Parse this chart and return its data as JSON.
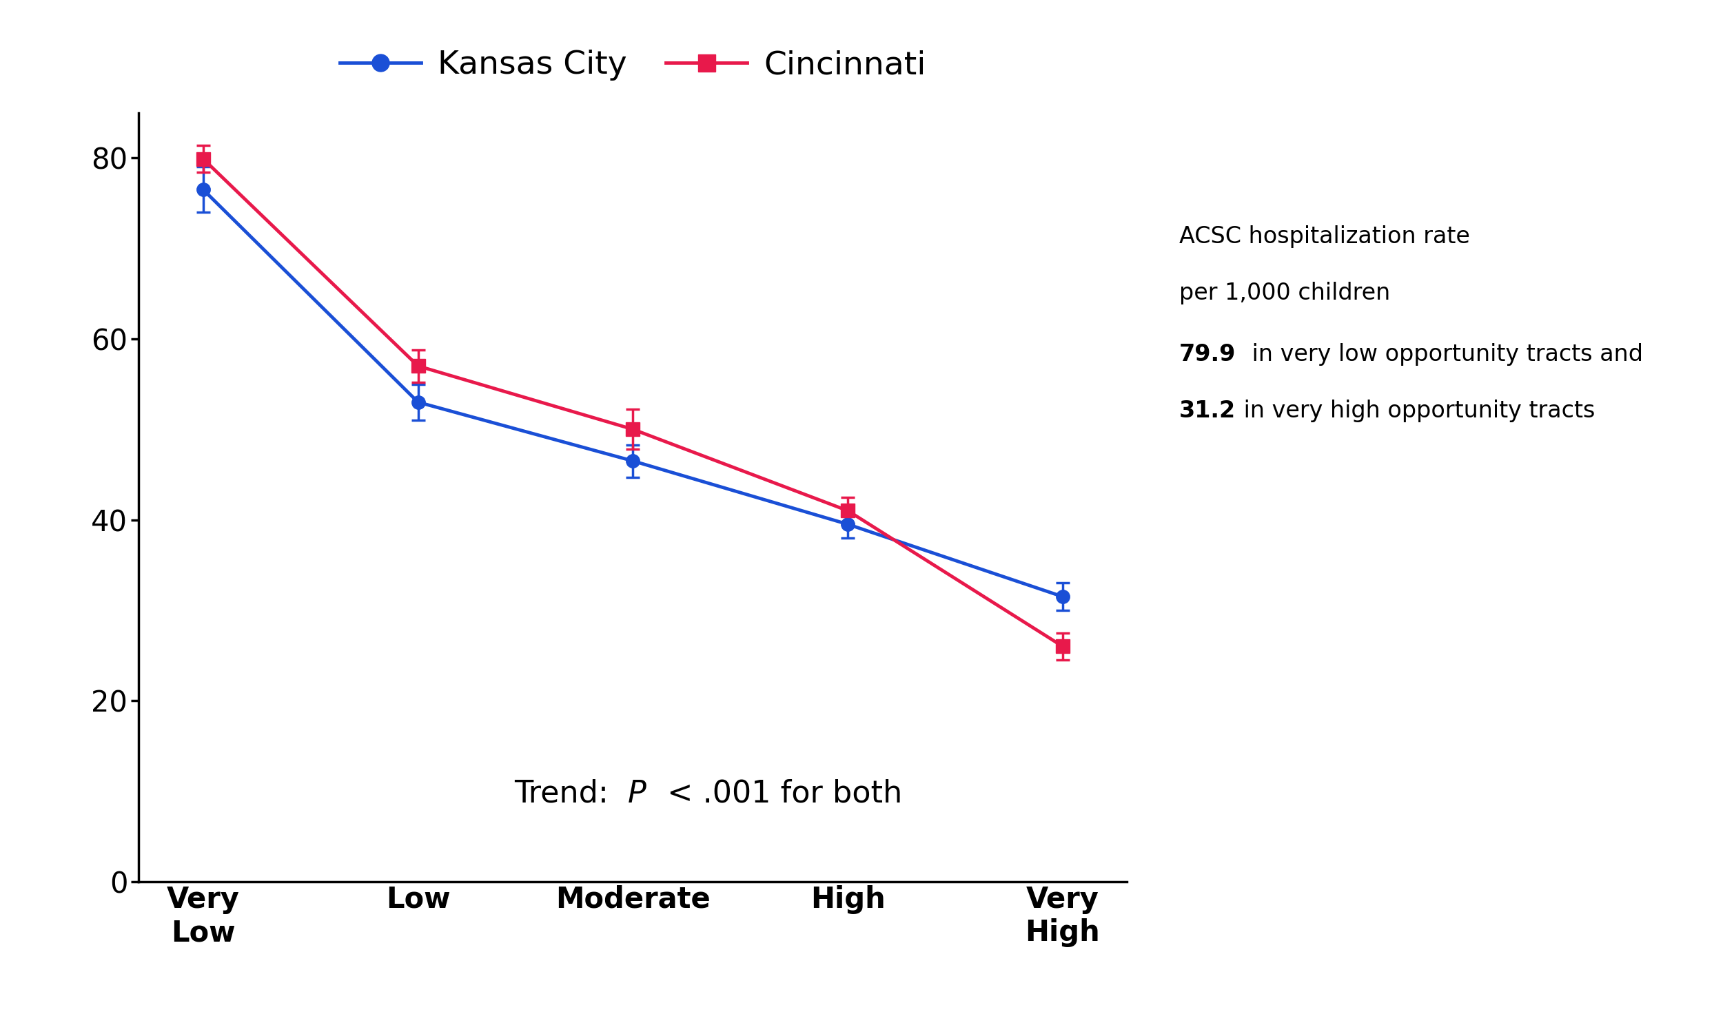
{
  "categories": [
    "Very\nLow",
    "Low",
    "Moderate",
    "High",
    "Very\nHigh"
  ],
  "kansas_city_values": [
    76.5,
    53.0,
    46.5,
    39.5,
    31.5
  ],
  "cincinnati_values": [
    79.9,
    57.0,
    50.0,
    41.0,
    26.0
  ],
  "kansas_city_errors": [
    2.5,
    2.0,
    1.8,
    1.5,
    1.5
  ],
  "cincinnati_errors": [
    1.5,
    1.8,
    2.2,
    1.5,
    1.5
  ],
  "kansas_city_color": "#1a4fd6",
  "cincinnati_color": "#e8194b",
  "ylim": [
    0,
    85
  ],
  "yticks": [
    0,
    20,
    40,
    60,
    80
  ],
  "legend_kc": "Kansas City",
  "legend_cin": "Cincinnati",
  "annotation_line1": "ACSC hospitalization rate",
  "annotation_line2": "per 1,000 children",
  "annotation_line3_bold": "79.9",
  "annotation_line3_rest": " in very low opportunity tracts and",
  "annotation_line4_bold": "31.2",
  "annotation_line4_rest": " in very high opportunity tracts",
  "trend_text": "Trend: ",
  "trend_italic": "P",
  "trend_rest": " < .001 for both",
  "background_color": "#ffffff",
  "linewidth": 3.5,
  "markersize": 14
}
